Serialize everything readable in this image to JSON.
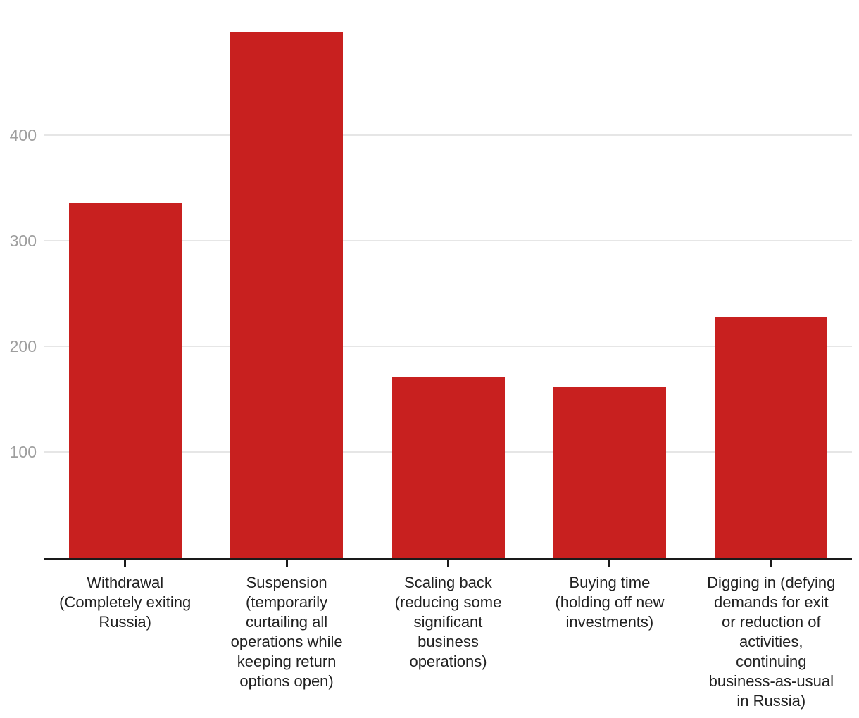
{
  "chart_data": {
    "type": "bar",
    "title": "",
    "xlabel": "",
    "ylabel": "",
    "categories": [
      "Withdrawal\n(Completely exiting\nRussia)",
      "Suspension\n(temporarily\ncurtailing all\noperations while\nkeeping return\noptions open)",
      "Scaling back\n(reducing some\nsignificant\nbusiness\noperations)",
      "Buying time\n(holding off new\ninvestments)",
      "Digging in (defying\ndemands for exit\nor reduction of\nactivities,\ncontinuing\nbusiness-as-usual\nin Russia)"
    ],
    "values": [
      336,
      497,
      171,
      161,
      227
    ],
    "yticks": [
      100,
      200,
      300,
      400
    ],
    "ylim": [
      0,
      528
    ],
    "grid": "horizontal",
    "legend": "none",
    "bar_color": "#c8201f"
  },
  "colors": {
    "background": "#ffffff",
    "bar": "#c8201f",
    "gridline": "#e6e6e6",
    "y_tick_label": "#9e9e9e",
    "x_tick_label": "#212121",
    "axis_line": "#1a1a1a"
  }
}
